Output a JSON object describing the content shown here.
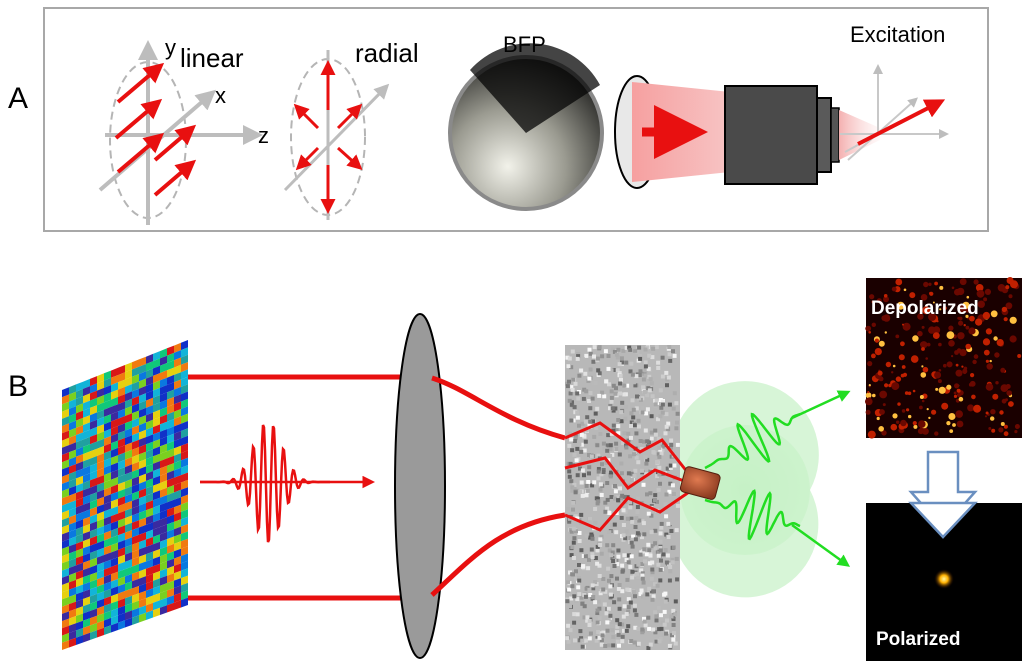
{
  "panel_a": {
    "letter": "A",
    "linear_label": "linear",
    "axis_y": "y",
    "axis_x": "x",
    "axis_z": "z",
    "radial_label": "radial",
    "bfp_label": "BFP",
    "excitation_label": "Excitation"
  },
  "panel_b": {
    "letter": "B",
    "depolarized_label": "Depolarized",
    "polarized_label": "Polarized"
  },
  "colors": {
    "beam_red": "#e81010",
    "speckle_green": "#22dd22",
    "frame_gray": "#999999",
    "objective_dark": "#4a4a4a",
    "arrow_blue_outline": "#6a8fc0"
  }
}
